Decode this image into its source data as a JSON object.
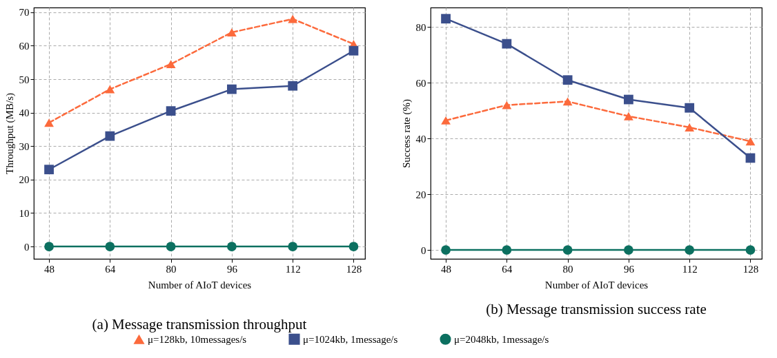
{
  "chart_data": [
    {
      "type": "line",
      "title": "(a) Message transmission throughput",
      "xlabel": "Number of AIoT devices",
      "ylabel": "Throughput (MB/s)",
      "x": [
        48,
        64,
        80,
        96,
        112,
        128
      ],
      "xlim": [
        44,
        131
      ],
      "xticks": [
        48,
        64,
        80,
        96,
        112,
        128
      ],
      "ylim": [
        -3.7,
        71.4
      ],
      "yticks": [
        0,
        10,
        20,
        30,
        40,
        50,
        60,
        70
      ],
      "grid": true,
      "legend": "bottom",
      "series": [
        {
          "name": "μ=128kb, 10messages/s",
          "color": "#fc6a3c",
          "marker": "triangle",
          "line_style": "dashed",
          "values": [
            37,
            47,
            54.5,
            64,
            68,
            60.5
          ]
        },
        {
          "name": "μ=1024kb, 1message/s",
          "color": "#3b4f8c",
          "marker": "square",
          "line_style": "solid",
          "values": [
            23,
            33,
            40.5,
            47,
            48,
            58.5
          ]
        },
        {
          "name": "μ=2048kb, 1message/s",
          "color": "#0c7060",
          "marker": "circle",
          "line_style": "solid",
          "values": [
            0,
            0,
            0,
            0,
            0,
            0
          ]
        }
      ]
    },
    {
      "type": "line",
      "title": "(b) Message transmission success rate",
      "xlabel": "Number of AIoT devices",
      "ylabel": "Success rate (%)",
      "x": [
        48,
        64,
        80,
        96,
        112,
        128
      ],
      "xlim": [
        44,
        131
      ],
      "xticks": [
        48,
        64,
        80,
        96,
        112,
        128
      ],
      "ylim": [
        -3.2,
        87
      ],
      "yticks": [
        0,
        20,
        40,
        60,
        80
      ],
      "grid": true,
      "series": [
        {
          "color": "#fc6a3c",
          "marker": "triangle",
          "line_style": "dashed",
          "values": [
            46.5,
            52,
            53.3,
            48,
            44,
            39
          ]
        },
        {
          "color": "#3b4f8c",
          "marker": "square",
          "line_style": "solid",
          "values": [
            83,
            74,
            61,
            54,
            51,
            33
          ]
        },
        {
          "color": "#0c7060",
          "marker": "circle",
          "line_style": "solid",
          "values": [
            0,
            0,
            0,
            0,
            0,
            0
          ]
        }
      ]
    }
  ]
}
